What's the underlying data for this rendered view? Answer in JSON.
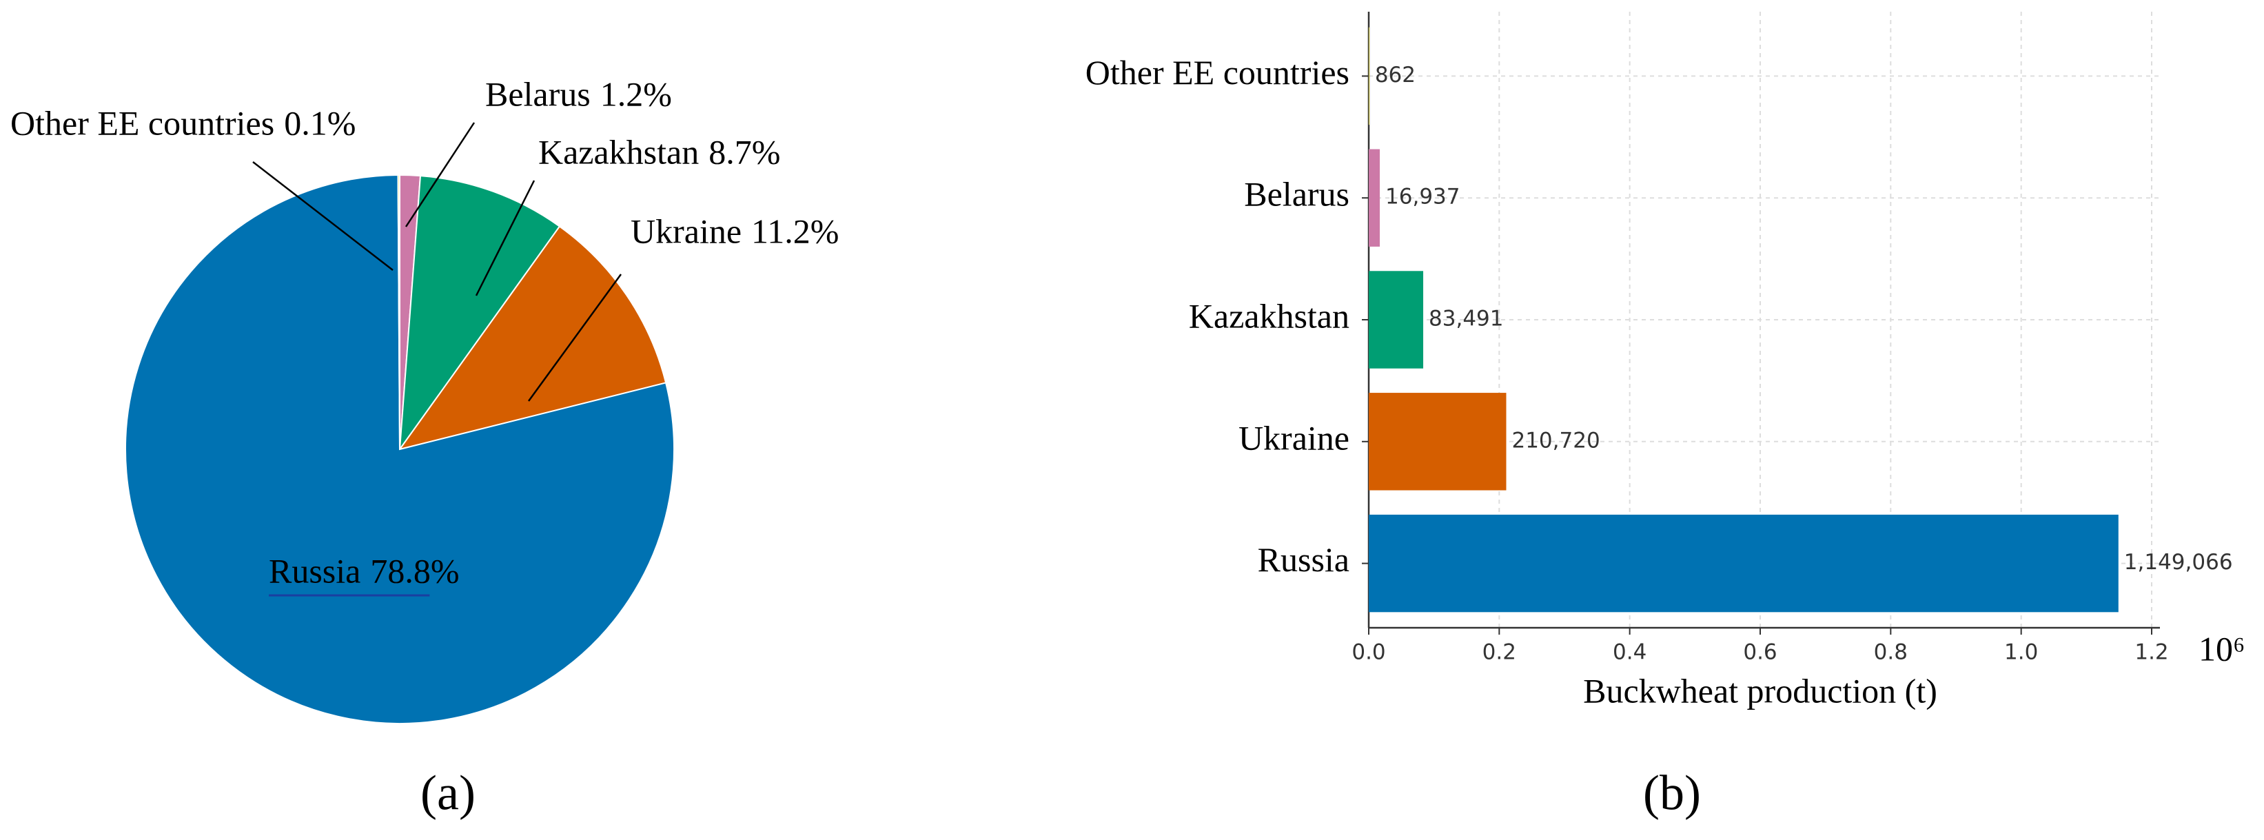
{
  "chart_data": [
    {
      "type": "pie",
      "panel_label": "(a)",
      "categories": [
        "Belarus",
        "Kazakhstan",
        "Ukraine",
        "Russia",
        "Other EE countries"
      ],
      "values": [
        1.2,
        8.7,
        11.2,
        78.8,
        0.1
      ],
      "value_labels": [
        "1.2%",
        "8.7%",
        "11.2%",
        "78.8%",
        "0.1%"
      ],
      "colors": [
        "#cc79a7",
        "#009e73",
        "#d55e00",
        "#0072b2",
        "#f0e442"
      ]
    },
    {
      "type": "barh",
      "panel_label": "(b)",
      "categories": [
        "Other EE countries",
        "Belarus",
        "Kazakhstan",
        "Ukraine",
        "Russia"
      ],
      "values": [
        862,
        16937,
        83491,
        210720,
        1149066
      ],
      "value_labels": [
        "862",
        "16,937",
        "83,491",
        "210,720",
        "1,149,066"
      ],
      "colors": [
        "#f0e442",
        "#cc79a7",
        "#009e73",
        "#d55e00",
        "#0072b2"
      ],
      "xlabel": "Buckwheat production (t)",
      "axis_multiplier": "10⁶",
      "xlim": [
        0,
        1200000
      ],
      "xticks": [
        {
          "value": 0,
          "label": "0.0"
        },
        {
          "value": 200000,
          "label": "0.2"
        },
        {
          "value": 400000,
          "label": "0.4"
        },
        {
          "value": 600000,
          "label": "0.6"
        },
        {
          "value": 800000,
          "label": "0.8"
        },
        {
          "value": 1000000,
          "label": "1.0"
        },
        {
          "value": 1200000,
          "label": "1.2"
        }
      ],
      "grid": true
    }
  ]
}
